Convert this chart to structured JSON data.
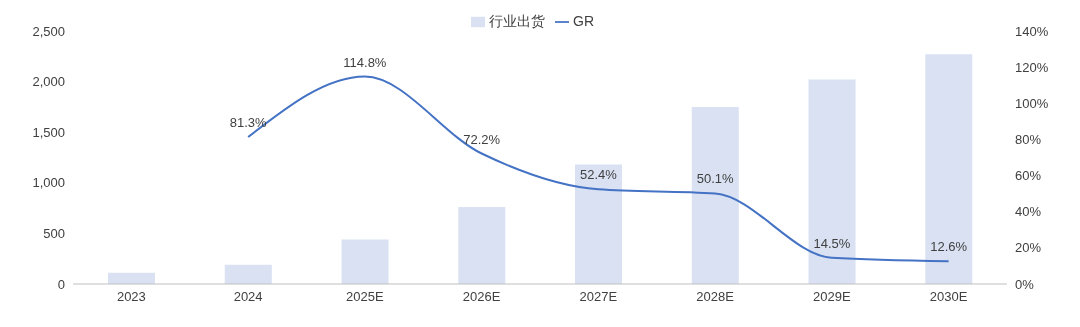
{
  "chart_data": {
    "type": "bar",
    "categories": [
      "2023",
      "2024",
      "2025E",
      "2026E",
      "2027E",
      "2028E",
      "2029E",
      "2030E"
    ],
    "series": [
      {
        "name": "行业出货",
        "color": "#d9e1f2",
        "values": [
          110,
          190,
          440,
          760,
          1180,
          1750,
          2020,
          2270
        ]
      },
      {
        "name": "GR",
        "type": "line",
        "axis": "y2",
        "color": "#4472c4",
        "values": [
          null,
          81.3,
          114.8,
          72.2,
          52.4,
          50.1,
          14.5,
          12.6
        ],
        "value_labels": [
          null,
          "81.3%",
          "114.8%",
          "72.2%",
          "52.4%",
          "50.1%",
          "14.5%",
          "12.6%"
        ]
      }
    ],
    "ylim": [
      0,
      2500
    ],
    "yticks": [
      0,
      500,
      {
        "value": 1000,
        "label": "1,000"
      },
      {
        "value": 1500,
        "label": "1,500"
      },
      {
        "value": 2000,
        "label": "2,000"
      },
      {
        "value": 2500,
        "label": "2,500"
      }
    ],
    "y2lim": [
      0,
      140
    ],
    "y2ticks": [
      {
        "value": 0,
        "label": "0%"
      },
      {
        "value": 20,
        "label": "20%"
      },
      {
        "value": 40,
        "label": "40%"
      },
      {
        "value": 60,
        "label": "60%"
      },
      {
        "value": 80,
        "label": "80%"
      },
      {
        "value": 100,
        "label": "100%"
      },
      {
        "value": 120,
        "label": "120%"
      },
      {
        "value": 140,
        "label": "140%"
      }
    ],
    "legend": "top",
    "grid": false,
    "marker": "none",
    "line_style": "solid"
  }
}
